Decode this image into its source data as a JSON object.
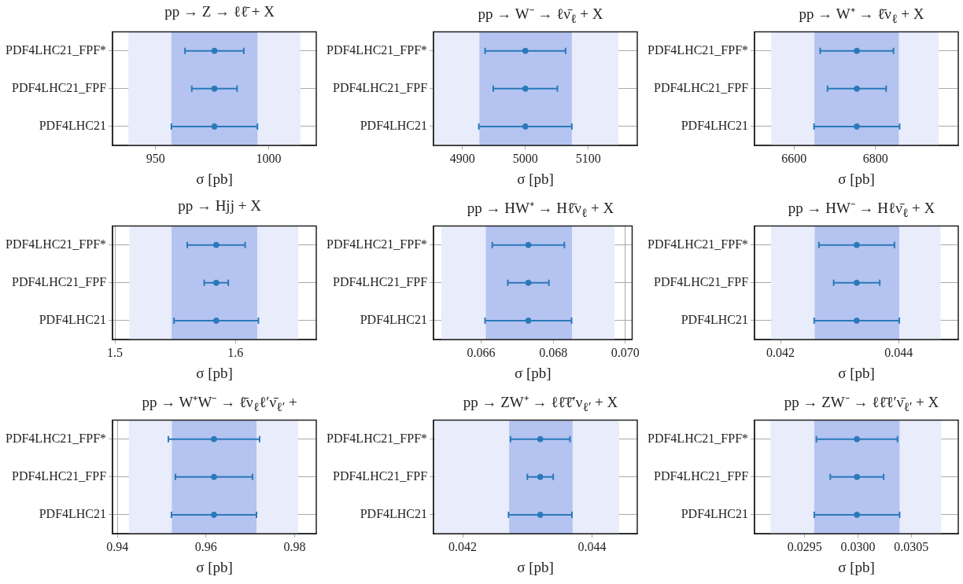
{
  "chart_data": [
    {
      "type": "scatter",
      "orientation": "horizontal",
      "title": "pp → Z → ℓℓ̄ + X",
      "xlabel": "σ [pb]",
      "categories": [
        "PDF4LHC21_FPF*",
        "PDF4LHC21_FPF",
        "PDF4LHC21"
      ],
      "color": "#2a7ab9",
      "marker": "circle",
      "values": [
        976,
        976,
        976
      ],
      "errors": [
        13,
        10,
        19
      ],
      "bands": [
        {
          "axis": "x",
          "from": 938,
          "to": 1014,
          "color": "#e8ecfb"
        },
        {
          "axis": "x",
          "from": 957,
          "to": 995,
          "color": "#b4c3f0"
        }
      ],
      "xlim": [
        931,
        1021
      ],
      "xticks": [
        950,
        1000
      ],
      "grid": true
    },
    {
      "type": "scatter",
      "orientation": "horizontal",
      "title": "pp → W⁻ → ℓν̄$_{ℓ}$ + X",
      "xlabel": "σ [pb]",
      "categories": [
        "PDF4LHC21_FPF*",
        "PDF4LHC21_FPF",
        "PDF4LHC21"
      ],
      "color": "#2a7ab9",
      "marker": "circle",
      "values": [
        5000,
        5000,
        5000
      ],
      "errors": [
        64,
        51,
        74
      ],
      "bands": [
        {
          "axis": "x",
          "from": 4854,
          "to": 5148,
          "color": "#e8ecfb"
        },
        {
          "axis": "x",
          "from": 4927,
          "to": 5074,
          "color": "#b4c3f0"
        }
      ],
      "xlim": [
        4854,
        5178
      ],
      "xticks": [
        4900,
        5000,
        5100
      ],
      "grid": true
    },
    {
      "type": "scatter",
      "orientation": "horizontal",
      "title": "pp → W⁺ → ℓ̄ν$_{ℓ}$ + X",
      "xlabel": "σ [pb]",
      "categories": [
        "PDF4LHC21_FPF*",
        "PDF4LHC21_FPF",
        "PDF4LHC21"
      ],
      "color": "#2a7ab9",
      "marker": "circle",
      "values": [
        6754,
        6754,
        6754
      ],
      "errors": [
        90,
        72,
        105
      ],
      "bands": [
        {
          "axis": "x",
          "from": 6544,
          "to": 6955,
          "color": "#e8ecfb"
        },
        {
          "axis": "x",
          "from": 6650,
          "to": 6857,
          "color": "#b4c3f0"
        }
      ],
      "xlim": [
        6503,
        7003
      ],
      "xticks": [
        6600,
        6800
      ],
      "grid": true
    },
    {
      "type": "scatter",
      "orientation": "horizontal",
      "title": "pp → Hjj + X",
      "xlabel": "σ [pb]",
      "categories": [
        "PDF4LHC21_FPF*",
        "PDF4LHC21_FPF",
        "PDF4LHC21"
      ],
      "color": "#2a7ab9",
      "marker": "circle",
      "values": [
        1.584,
        1.584,
        1.584
      ],
      "errors": [
        0.024,
        0.01,
        0.035
      ],
      "bands": [
        {
          "axis": "x",
          "from": 1.512,
          "to": 1.652,
          "color": "#e8ecfb"
        },
        {
          "axis": "x",
          "from": 1.547,
          "to": 1.618,
          "color": "#b4c3f0"
        }
      ],
      "xlim": [
        1.498,
        1.667
      ],
      "xticks": [
        1.5,
        1.6
      ],
      "grid": true
    },
    {
      "type": "scatter",
      "orientation": "horizontal",
      "title": "pp → HW⁺ → Hℓ̄ν$_{ℓ}$ + X",
      "xlabel": "σ [pb]",
      "categories": [
        "PDF4LHC21_FPF*",
        "PDF4LHC21_FPF",
        "PDF4LHC21"
      ],
      "color": "#2a7ab9",
      "marker": "circle",
      "values": [
        0.06731,
        0.06731,
        0.06731
      ],
      "errors": [
        0.001,
        0.00057,
        0.0012
      ],
      "bands": [
        {
          "axis": "x",
          "from": 0.0649,
          "to": 0.0697,
          "color": "#e8ecfb"
        },
        {
          "axis": "x",
          "from": 0.06613,
          "to": 0.06852,
          "color": "#b4c3f0"
        }
      ],
      "xlim": [
        0.06468,
        0.07019
      ],
      "xticks": [
        0.066,
        0.068,
        {
          "value": 0.07,
          "label": "0.070"
        }
      ],
      "grid": true
    },
    {
      "type": "scatter",
      "orientation": "horizontal",
      "title": "pp → HW⁻ → Hℓν̄$_{ℓ}$ + X",
      "xlabel": "σ [pb]",
      "categories": [
        "PDF4LHC21_FPF*",
        "PDF4LHC21_FPF",
        "PDF4LHC21"
      ],
      "color": "#2a7ab9",
      "marker": "circle",
      "values": [
        0.04329,
        0.04329,
        0.04329
      ],
      "errors": [
        0.00064,
        0.00039,
        0.00072
      ],
      "bands": [
        {
          "axis": "x",
          "from": 0.04184,
          "to": 0.04471,
          "color": "#e8ecfb"
        },
        {
          "axis": "x",
          "from": 0.04258,
          "to": 0.04401,
          "color": "#b4c3f0"
        }
      ],
      "xlim": [
        0.04156,
        0.04501
      ],
      "xticks": [
        0.042,
        0.044
      ],
      "grid": true
    },
    {
      "type": "scatter",
      "orientation": "horizontal",
      "title": "pp → W⁺W⁻ → ℓ̄ν$_{ℓ}$ℓ′ν̄$_{ℓ′}$ +",
      "xlabel": "σ [pb]",
      "categories": [
        "PDF4LHC21_FPF*",
        "PDF4LHC21_FPF",
        "PDF4LHC21"
      ],
      "color": "#2a7ab9",
      "marker": "circle",
      "values": [
        0.9618,
        0.9618,
        0.9618
      ],
      "errors": [
        0.0103,
        0.0087,
        0.0096
      ],
      "bands": [
        {
          "axis": "x",
          "from": 0.9426,
          "to": 0.9808,
          "color": "#e8ecfb"
        },
        {
          "axis": "x",
          "from": 0.9523,
          "to": 0.9714,
          "color": "#b4c3f0"
        }
      ],
      "xlim": [
        0.9389,
        0.9849
      ],
      "xticks": [
        0.94,
        0.96,
        0.98
      ],
      "grid": true
    },
    {
      "type": "scatter",
      "orientation": "horizontal",
      "title": "pp → ZW⁺ → ℓℓ̄ℓ̄′ν$_{ℓ′}$ + X",
      "xlabel": "σ [pb]",
      "categories": [
        "PDF4LHC21_FPF*",
        "PDF4LHC21_FPF",
        "PDF4LHC21"
      ],
      "color": "#2a7ab9",
      "marker": "circle",
      "values": [
        0.0432,
        0.0432,
        0.0432
      ],
      "errors": [
        0.00046,
        0.0002,
        0.00049
      ],
      "bands": [
        {
          "axis": "x",
          "from": 0.04157,
          "to": 0.04442,
          "color": "#e8ecfb"
        },
        {
          "axis": "x",
          "from": 0.04272,
          "to": 0.0437,
          "color": "#b4c3f0"
        }
      ],
      "xlim": [
        0.04155,
        0.0447
      ],
      "xticks": [
        0.042,
        0.044
      ],
      "grid": true
    },
    {
      "type": "scatter",
      "orientation": "horizontal",
      "title": "pp → ZW⁻ → ℓℓ̄ℓ′ν̄$_{ℓ′}$ + X",
      "xlabel": "σ [pb]",
      "categories": [
        "PDF4LHC21_FPF*",
        "PDF4LHC21_FPF",
        "PDF4LHC21"
      ],
      "color": "#2a7ab9",
      "marker": "circle",
      "values": [
        0.02999,
        0.02999,
        0.02999
      ],
      "errors": [
        0.00038,
        0.00025,
        0.0004
      ],
      "bands": [
        {
          "axis": "x",
          "from": 0.02918,
          "to": 0.03078,
          "color": "#e8ecfb"
        },
        {
          "axis": "x",
          "from": 0.02959,
          "to": 0.03039,
          "color": "#b4c3f0"
        }
      ],
      "xlim": [
        0.02903,
        0.03094
      ],
      "xticks": [
        0.0295,
        {
          "value": 0.03,
          "label": "0.0300"
        },
        0.0305
      ],
      "grid": true
    }
  ]
}
